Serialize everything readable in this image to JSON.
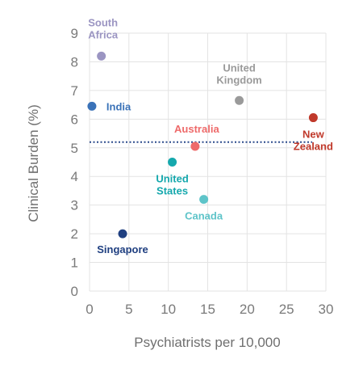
{
  "chart_data": {
    "type": "scatter",
    "title": "",
    "xlabel": "Psychiatrists per 10,000",
    "ylabel": "Clinical Burden (%)",
    "xlim": [
      0,
      30
    ],
    "ylim": [
      0,
      9
    ],
    "x_ticks": [
      "0",
      "5",
      "10",
      "15",
      "20",
      "25",
      "30"
    ],
    "y_ticks": [
      "0",
      "1",
      "2",
      "3",
      "4",
      "5",
      "6",
      "7",
      "8",
      "9"
    ],
    "grid": true,
    "reference_line": {
      "y": 5.2,
      "style": "dotted",
      "color": "#2b4a8c"
    },
    "points": [
      {
        "name": "South Africa",
        "label_lines": [
          "South",
          "Africa"
        ],
        "x": 1.5,
        "y": 8.2,
        "color": "#9b95c2"
      },
      {
        "name": "India",
        "label_lines": [
          "India"
        ],
        "x": 0.3,
        "y": 6.45,
        "color": "#3a72b8"
      },
      {
        "name": "United Kingdom",
        "label_lines": [
          "United",
          "Kingdom"
        ],
        "x": 19.0,
        "y": 6.65,
        "color": "#9a9a9a"
      },
      {
        "name": "New Zealand",
        "label_lines": [
          "New",
          "Zealand"
        ],
        "x": 28.4,
        "y": 6.05,
        "color": "#c0392b"
      },
      {
        "name": "Australia",
        "label_lines": [
          "Australia"
        ],
        "x": 13.4,
        "y": 5.05,
        "color": "#ee6a6a"
      },
      {
        "name": "United States",
        "label_lines": [
          "United",
          "States"
        ],
        "x": 10.5,
        "y": 4.5,
        "color": "#15a8ad"
      },
      {
        "name": "Canada",
        "label_lines": [
          "Canada"
        ],
        "x": 14.5,
        "y": 3.2,
        "color": "#5ec4c9"
      },
      {
        "name": "Singapore",
        "label_lines": [
          "Singapore"
        ],
        "x": 4.2,
        "y": 2.0,
        "color": "#1f3f80"
      }
    ]
  }
}
